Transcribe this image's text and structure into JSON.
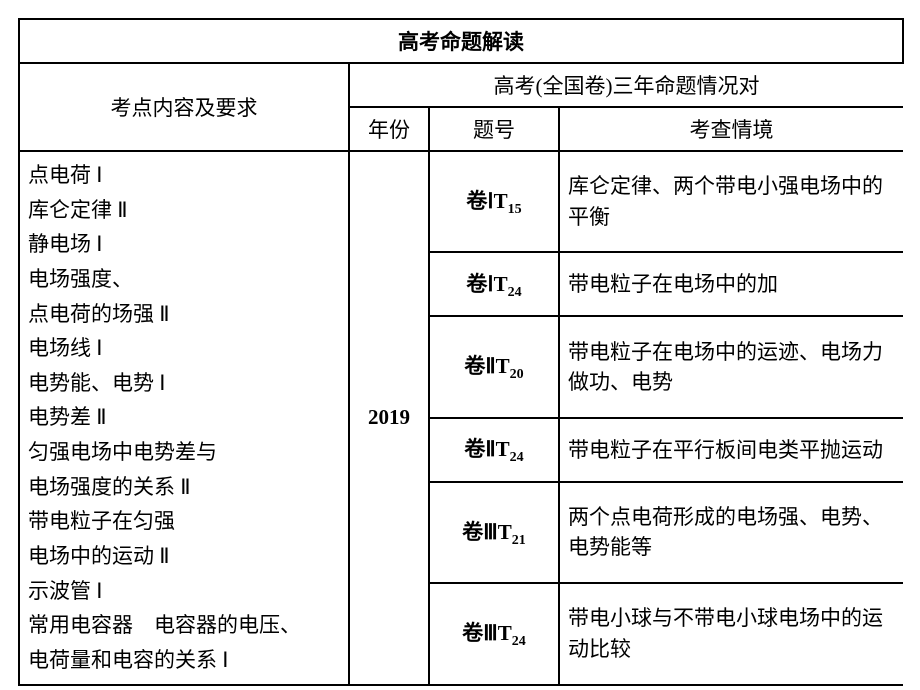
{
  "header": {
    "main": "高考命题解读",
    "col_topic": "考点内容及要求",
    "col_group": "高考(全国卷)三年命题情况对",
    "col_year": "年份",
    "col_qnum": "题号",
    "col_context": "考查情境"
  },
  "topic_lines": [
    "点电荷 Ⅰ",
    "库仑定律 Ⅱ",
    "静电场 Ⅰ",
    "电场强度、",
    "点电荷的场强 Ⅱ",
    "电场线 Ⅰ",
    "电势能、电势 Ⅰ",
    "电势差 Ⅱ",
    "匀强电场中电势差与",
    "电场强度的关系 Ⅱ",
    "带电粒子在匀强",
    "电场中的运动 Ⅱ",
    "示波管 Ⅰ",
    "常用电容器　电容器的电压、",
    "电荷量和电容的关系 Ⅰ"
  ],
  "year": "2019",
  "rows": [
    {
      "qnum_prefix": "卷ⅠT",
      "qnum_sub": "15",
      "context": "库仑定律、两个带电小强电场中的平衡"
    },
    {
      "qnum_prefix": "卷ⅠT",
      "qnum_sub": "24",
      "context": "带电粒子在电场中的加"
    },
    {
      "qnum_prefix": "卷ⅡT",
      "qnum_sub": "20",
      "context": "带电粒子在电场中的运迹、电场力做功、电势"
    },
    {
      "qnum_prefix": "卷ⅡT",
      "qnum_sub": "24",
      "context": "带电粒子在平行板间电类平抛运动"
    },
    {
      "qnum_prefix": "卷ⅢT",
      "qnum_sub": "21",
      "context": "两个点电荷形成的电场强、电势、电势能等"
    },
    {
      "qnum_prefix": "卷ⅢT",
      "qnum_sub": "24",
      "context": "带电小球与不带电小球电场中的运动比较"
    }
  ],
  "layout": {
    "col_widths": [
      "330",
      "80",
      "130",
      "344"
    ]
  }
}
